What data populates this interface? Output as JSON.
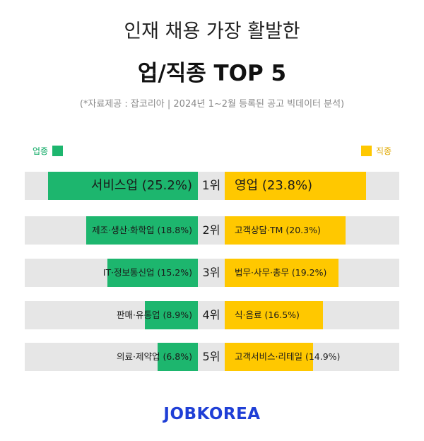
{
  "header": {
    "title_line1": "인재 채용 가장 활발한",
    "title_line2": "업/직종 TOP 5",
    "source": "(*자료제공 : 잡코리아  | 2024년 1~2월 등록된 공고  빅데이터 분석)"
  },
  "legend": {
    "left_label": "업종",
    "right_label": "직종"
  },
  "brand": "JOBKOREA",
  "colors": {
    "industry_bar": "#1db66e",
    "job_bar": "#ffc800",
    "track": "#e6e6e6",
    "brand": "#1f3fd6"
  },
  "chart_data": {
    "type": "bar",
    "layout": "butterfly",
    "rows": [
      {
        "rank": "1위",
        "industry": "서비스업 (25.2%)",
        "industry_value": 25.2,
        "job": "영업 (23.8%)",
        "job_value": 23.8
      },
      {
        "rank": "2위",
        "industry": "제조·생산·화학업 (18.8%)",
        "industry_value": 18.8,
        "job": "고객상담·TM (20.3%)",
        "job_value": 20.3
      },
      {
        "rank": "3위",
        "industry": "IT·정보통신업 (15.2%)",
        "industry_value": 15.2,
        "job": "법무·사무·총무 (19.2%)",
        "job_value": 19.2
      },
      {
        "rank": "4위",
        "industry": "판매·유통업 (8.9%)",
        "industry_value": 8.9,
        "job": "식·음료 (16.5%)",
        "job_value": 16.5
      },
      {
        "rank": "5위",
        "industry": "의료·제약업 (6.8%)",
        "industry_value": 6.8,
        "job": "고객서비스·리테일 (14.9%)",
        "job_value": 14.9
      }
    ]
  }
}
